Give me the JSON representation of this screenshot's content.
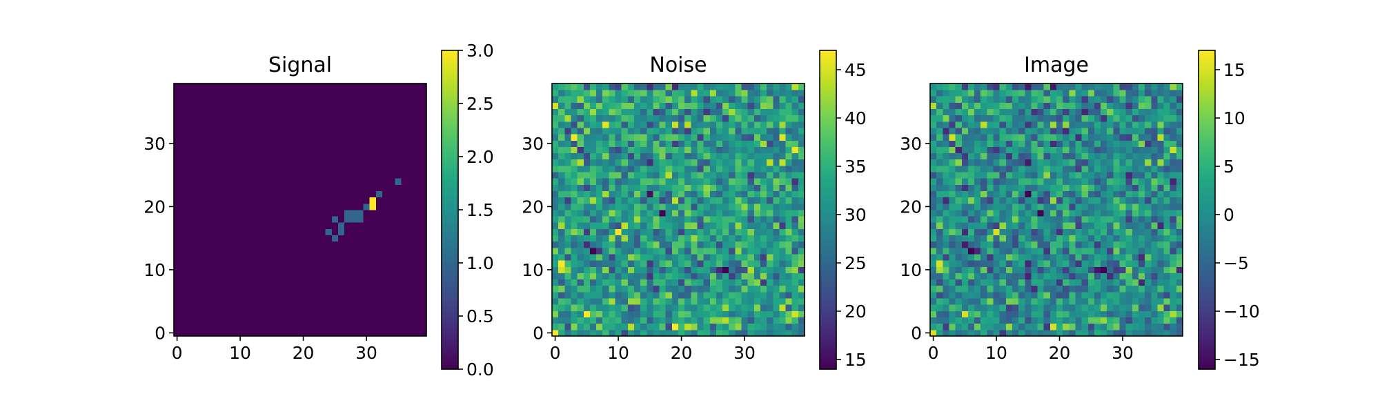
{
  "chart_data": [
    {
      "type": "heatmap",
      "title": "Signal",
      "grid_size": [
        40,
        40
      ],
      "xlim": [
        -0.5,
        39.5
      ],
      "ylim": [
        -0.5,
        39.5
      ],
      "origin": "lower",
      "xticks": [
        0,
        10,
        20,
        30
      ],
      "yticks": [
        0,
        10,
        20,
        30
      ],
      "colormap": "viridis",
      "colorbar": {
        "min": 0.0,
        "max": 3.0,
        "ticks": [
          0.0,
          0.5,
          1.0,
          1.5,
          2.0,
          2.5,
          3.0
        ]
      },
      "background_value": 0,
      "nonzero_cells": [
        {
          "x": 24,
          "y": 16,
          "v": 1
        },
        {
          "x": 25,
          "y": 15,
          "v": 1
        },
        {
          "x": 25,
          "y": 18,
          "v": 1
        },
        {
          "x": 26,
          "y": 16,
          "v": 1
        },
        {
          "x": 26,
          "y": 17,
          "v": 1
        },
        {
          "x": 27,
          "y": 18,
          "v": 1
        },
        {
          "x": 27,
          "y": 19,
          "v": 1
        },
        {
          "x": 28,
          "y": 18,
          "v": 1
        },
        {
          "x": 28,
          "y": 19,
          "v": 1
        },
        {
          "x": 29,
          "y": 18,
          "v": 1
        },
        {
          "x": 29,
          "y": 19,
          "v": 1
        },
        {
          "x": 30,
          "y": 20,
          "v": 1
        },
        {
          "x": 31,
          "y": 20,
          "v": 3
        },
        {
          "x": 31,
          "y": 21,
          "v": 3
        },
        {
          "x": 32,
          "y": 22,
          "v": 1
        },
        {
          "x": 35,
          "y": 24,
          "v": 1
        }
      ]
    },
    {
      "type": "heatmap",
      "title": "Noise",
      "grid_size": [
        40,
        40
      ],
      "xlim": [
        -0.5,
        39.5
      ],
      "ylim": [
        -0.5,
        39.5
      ],
      "origin": "lower",
      "xticks": [
        0,
        10,
        20,
        30
      ],
      "yticks": [
        0,
        10,
        20,
        30
      ],
      "colormap": "viridis",
      "colorbar": {
        "min": 14,
        "max": 47,
        "ticks": [
          15,
          20,
          25,
          30,
          35,
          40,
          45
        ]
      },
      "value_distribution": "random noise, mean about 32",
      "seed": 7
    },
    {
      "type": "heatmap",
      "title": "Image",
      "grid_size": [
        40,
        40
      ],
      "xlim": [
        -0.5,
        39.5
      ],
      "ylim": [
        -0.5,
        39.5
      ],
      "origin": "lower",
      "xticks": [
        0,
        10,
        20,
        30
      ],
      "yticks": [
        0,
        10,
        20,
        30
      ],
      "colormap": "viridis",
      "colorbar": {
        "min": -16,
        "max": 17,
        "ticks": [
          -15,
          -10,
          -5,
          0,
          5,
          10,
          15
        ]
      },
      "value_distribution": "noise minus its mean plus signal, about 0 centered",
      "seed": 7
    }
  ]
}
